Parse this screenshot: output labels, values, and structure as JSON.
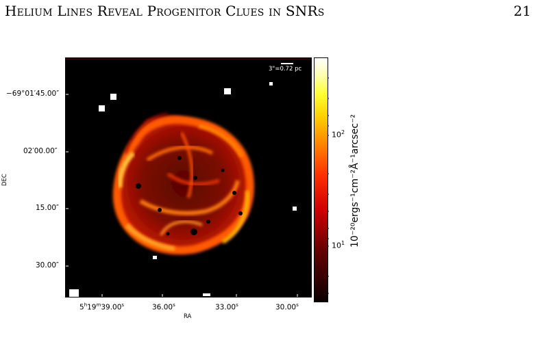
{
  "page": {
    "running_title": "Helium Lines Reveal Progenitor Clues in SNRs",
    "page_number": "21"
  },
  "figure": {
    "scale_bar_label": "3\"=0.72 pc",
    "y_axis_label": "DEC",
    "x_axis_label": "RA",
    "y_ticks": [
      "−69°01′45.00″",
      "02′00.00″",
      "15.00″",
      "30.00″"
    ],
    "x_ticks": [
      {
        "base": "5",
        "h": "h",
        "mid": "19",
        "m": "m",
        "rest": "39.00",
        "s": "s"
      },
      {
        "base": "36.00",
        "s": "s"
      },
      {
        "base": "33.00",
        "s": "s"
      },
      {
        "base": "30.00",
        "s": "s"
      }
    ],
    "colorbar": {
      "ticks": [
        {
          "base": "10",
          "exp": "2"
        },
        {
          "base": "10",
          "exp": "1"
        }
      ],
      "label": "10⁻²⁰ergs⁻¹cm⁻²Å⁻¹arcsec⁻²",
      "colormap": "hot"
    },
    "colors": {
      "background": "#000000",
      "shell_bright": "#ffb000",
      "shell_mid": "#ff4a00",
      "shell_dim": "#a80c00"
    }
  }
}
